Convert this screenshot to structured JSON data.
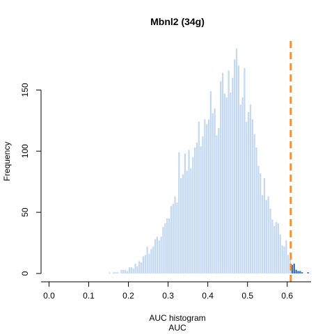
{
  "chart_data": {
    "type": "bar",
    "title": "Mbnl2 (34g)",
    "xlabel": "AUC histogram",
    "xlabel2": "AUC",
    "ylabel": "Frequency",
    "xlim": [
      -0.02,
      0.66
    ],
    "ylim": [
      0,
      190
    ],
    "x_ticks": [
      0.0,
      0.1,
      0.2,
      0.3,
      0.4,
      0.5,
      0.6
    ],
    "x_tick_labels": [
      "0.0",
      "0.1",
      "0.2",
      "0.3",
      "0.4",
      "0.5",
      "0.6"
    ],
    "y_ticks": [
      0,
      50,
      100,
      150
    ],
    "y_tick_labels": [
      "0",
      "50",
      "100",
      "150"
    ],
    "grid": false,
    "threshold": 0.609,
    "bin_width": 0.005,
    "colors": {
      "below_threshold": "#c3d9f3",
      "above_threshold": "#2a6bbf",
      "threshold_line": "#ff8c1a"
    },
    "bins": [
      [
        0.15,
        0.155,
        1
      ],
      [
        0.155,
        0.16,
        0
      ],
      [
        0.16,
        0.165,
        1
      ],
      [
        0.165,
        0.17,
        1
      ],
      [
        0.17,
        0.175,
        1
      ],
      [
        0.175,
        0.18,
        0
      ],
      [
        0.18,
        0.185,
        3
      ],
      [
        0.185,
        0.19,
        3
      ],
      [
        0.19,
        0.195,
        3
      ],
      [
        0.195,
        0.2,
        2
      ],
      [
        0.2,
        0.205,
        5
      ],
      [
        0.205,
        0.21,
        5
      ],
      [
        0.21,
        0.215,
        4
      ],
      [
        0.215,
        0.22,
        8
      ],
      [
        0.22,
        0.225,
        6
      ],
      [
        0.225,
        0.23,
        10
      ],
      [
        0.23,
        0.235,
        9
      ],
      [
        0.235,
        0.24,
        14
      ],
      [
        0.24,
        0.245,
        15
      ],
      [
        0.245,
        0.25,
        22
      ],
      [
        0.25,
        0.255,
        16
      ],
      [
        0.255,
        0.26,
        20
      ],
      [
        0.26,
        0.265,
        22
      ],
      [
        0.265,
        0.27,
        28
      ],
      [
        0.27,
        0.275,
        30
      ],
      [
        0.275,
        0.28,
        27
      ],
      [
        0.28,
        0.285,
        30
      ],
      [
        0.285,
        0.29,
        38
      ],
      [
        0.29,
        0.295,
        41
      ],
      [
        0.295,
        0.3,
        45
      ],
      [
        0.3,
        0.305,
        45
      ],
      [
        0.305,
        0.31,
        55
      ],
      [
        0.31,
        0.315,
        57
      ],
      [
        0.315,
        0.32,
        63
      ],
      [
        0.32,
        0.325,
        58
      ],
      [
        0.325,
        0.33,
        99
      ],
      [
        0.33,
        0.335,
        78
      ],
      [
        0.335,
        0.34,
        81
      ],
      [
        0.34,
        0.345,
        98
      ],
      [
        0.345,
        0.35,
        84
      ],
      [
        0.35,
        0.355,
        101
      ],
      [
        0.355,
        0.36,
        86
      ],
      [
        0.36,
        0.365,
        95
      ],
      [
        0.365,
        0.37,
        103
      ],
      [
        0.37,
        0.375,
        107
      ],
      [
        0.375,
        0.38,
        124
      ],
      [
        0.38,
        0.385,
        104
      ],
      [
        0.385,
        0.39,
        112
      ],
      [
        0.39,
        0.395,
        126
      ],
      [
        0.395,
        0.4,
        122
      ],
      [
        0.4,
        0.405,
        126
      ],
      [
        0.405,
        0.41,
        149
      ],
      [
        0.41,
        0.415,
        131
      ],
      [
        0.415,
        0.42,
        135
      ],
      [
        0.42,
        0.425,
        113
      ],
      [
        0.425,
        0.43,
        119
      ],
      [
        0.43,
        0.435,
        157
      ],
      [
        0.435,
        0.44,
        164
      ],
      [
        0.44,
        0.445,
        147
      ],
      [
        0.445,
        0.45,
        144
      ],
      [
        0.45,
        0.455,
        166
      ],
      [
        0.455,
        0.46,
        148
      ],
      [
        0.46,
        0.465,
        160
      ],
      [
        0.465,
        0.47,
        175
      ],
      [
        0.47,
        0.475,
        184
      ],
      [
        0.475,
        0.48,
        170
      ],
      [
        0.48,
        0.485,
        138
      ],
      [
        0.485,
        0.49,
        144
      ],
      [
        0.49,
        0.495,
        168
      ],
      [
        0.495,
        0.5,
        124
      ],
      [
        0.5,
        0.505,
        132
      ],
      [
        0.505,
        0.51,
        138
      ],
      [
        0.51,
        0.515,
        126
      ],
      [
        0.515,
        0.52,
        114
      ],
      [
        0.52,
        0.525,
        103
      ],
      [
        0.525,
        0.53,
        88
      ],
      [
        0.53,
        0.535,
        82
      ],
      [
        0.535,
        0.54,
        64
      ],
      [
        0.54,
        0.545,
        78
      ],
      [
        0.545,
        0.55,
        60
      ],
      [
        0.55,
        0.555,
        63
      ],
      [
        0.555,
        0.56,
        53
      ],
      [
        0.56,
        0.565,
        44
      ],
      [
        0.565,
        0.57,
        39
      ],
      [
        0.57,
        0.575,
        42
      ],
      [
        0.575,
        0.58,
        41
      ],
      [
        0.58,
        0.585,
        32
      ],
      [
        0.585,
        0.59,
        23
      ],
      [
        0.59,
        0.595,
        22
      ],
      [
        0.595,
        0.6,
        27
      ],
      [
        0.6,
        0.605,
        15
      ],
      [
        0.605,
        0.61,
        12
      ],
      [
        0.61,
        0.615,
        7
      ],
      [
        0.615,
        0.62,
        8
      ],
      [
        0.62,
        0.625,
        3
      ],
      [
        0.625,
        0.63,
        2
      ],
      [
        0.63,
        0.635,
        2
      ],
      [
        0.635,
        0.64,
        1
      ],
      [
        0.64,
        0.645,
        0
      ],
      [
        0.645,
        0.65,
        0
      ],
      [
        0.65,
        0.655,
        1
      ]
    ]
  }
}
